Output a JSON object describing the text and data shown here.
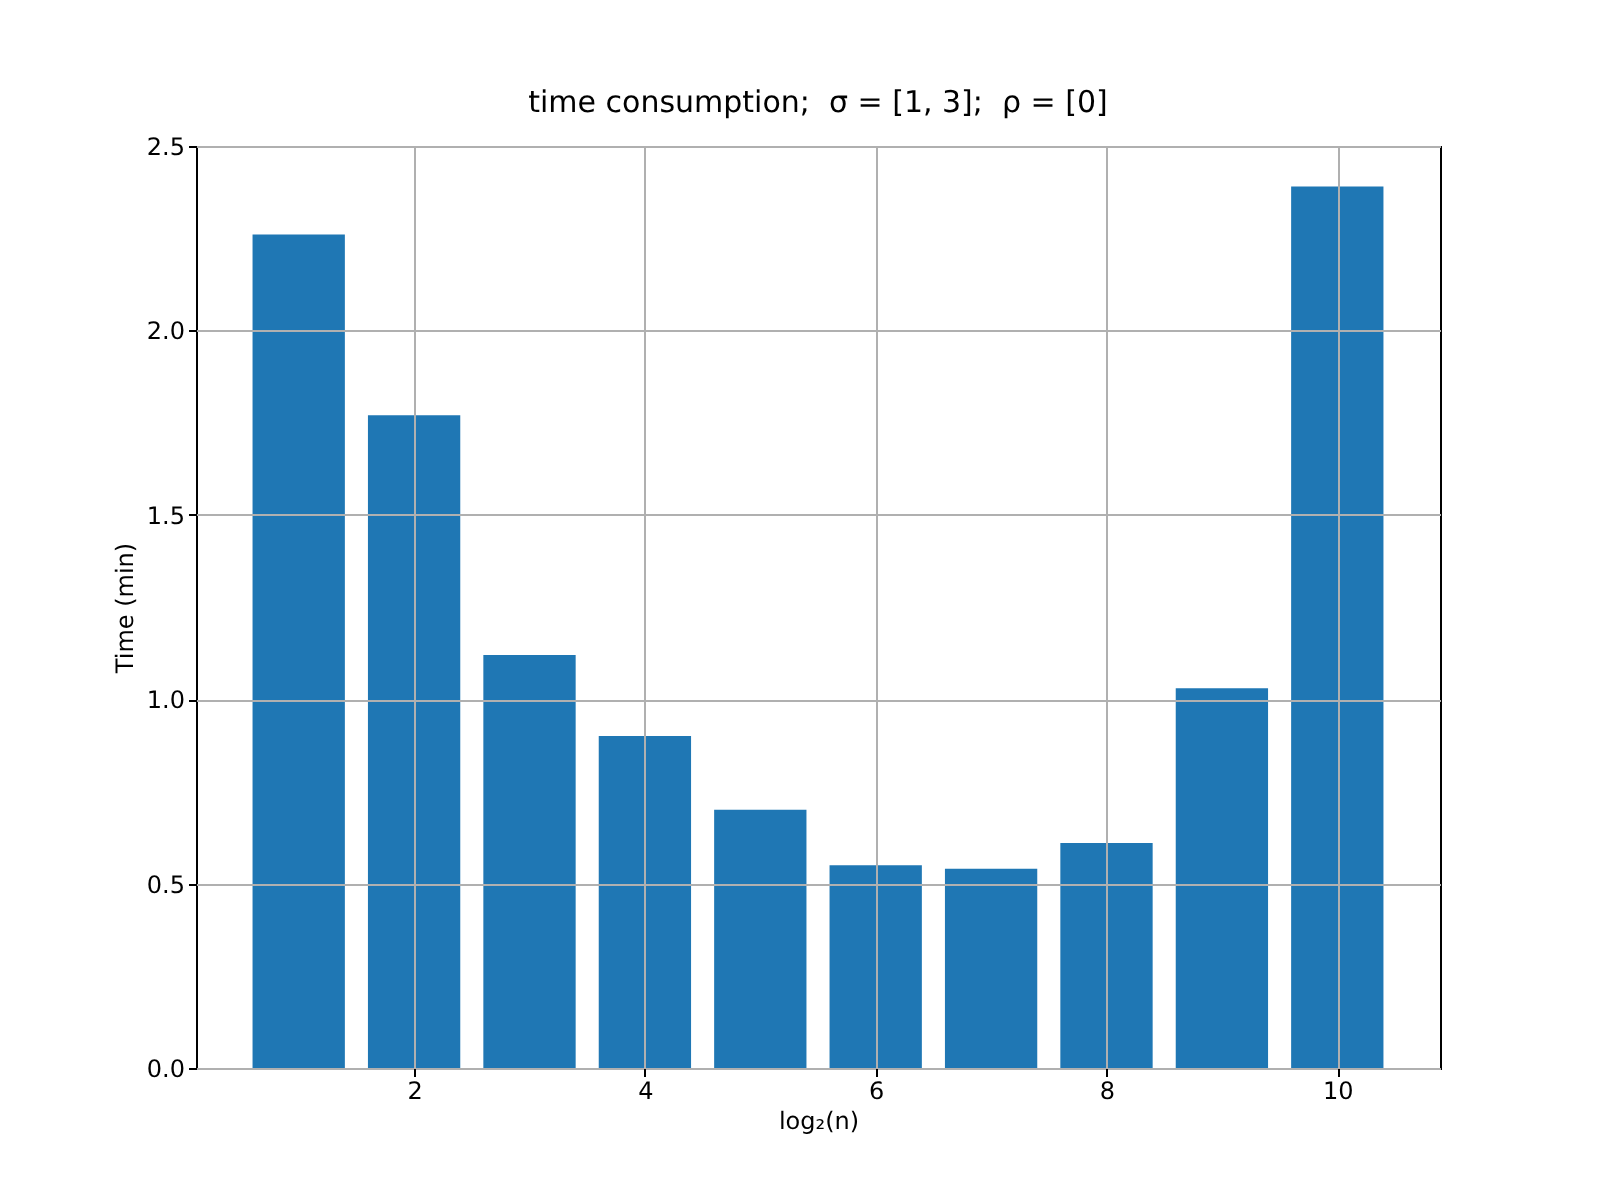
{
  "chart_data": {
    "type": "bar",
    "title": "time consumption;  σ = [1, 3];  ρ = [0]",
    "xlabel": "log₂(n)",
    "ylabel": "Time (min)",
    "x": [
      1,
      2,
      3,
      4,
      5,
      6,
      7,
      8,
      9,
      10
    ],
    "values": [
      2.26,
      1.77,
      1.12,
      0.9,
      0.7,
      0.55,
      0.54,
      0.61,
      1.03,
      2.39
    ],
    "color": "#1f77b4",
    "xlim": [
      0.11,
      10.89
    ],
    "xticks": [
      2,
      4,
      6,
      8,
      10
    ],
    "ylim": [
      0,
      2.5
    ],
    "yticks": [
      {
        "value": 0,
        "label": "0.0"
      },
      {
        "value": 0.5,
        "label": "0.5"
      },
      {
        "value": 1,
        "label": "1.0"
      },
      {
        "value": 1.5,
        "label": "1.5"
      },
      {
        "value": 2,
        "label": "2.0"
      },
      {
        "value": 2.5,
        "label": "2.5"
      }
    ],
    "grid": true
  }
}
